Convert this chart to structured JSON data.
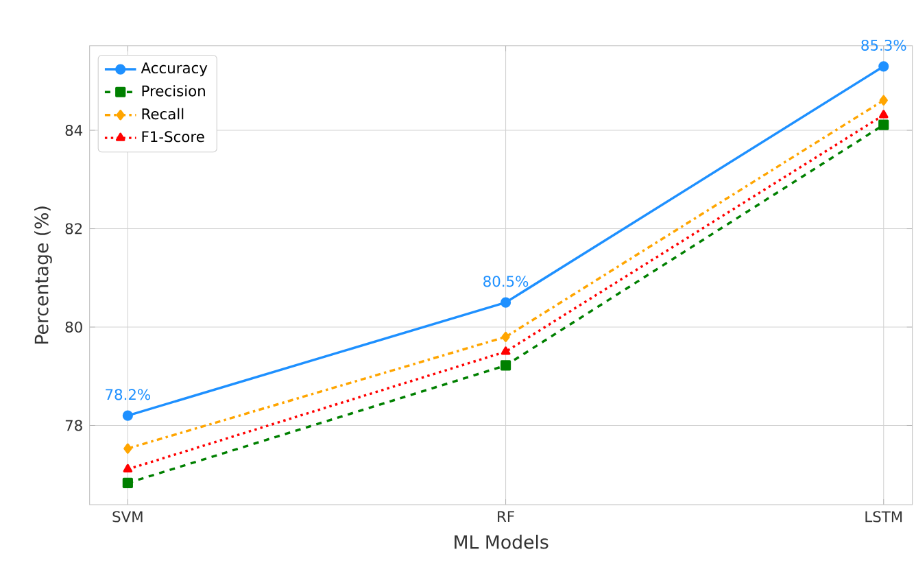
{
  "chart_data": {
    "type": "line",
    "xlabel": "ML Models",
    "ylabel": "Percentage (%)",
    "categories": [
      "SVM",
      "RF",
      "LSTM"
    ],
    "series": [
      {
        "name": "Accuracy",
        "color": "#1e90ff",
        "values": [
          78.2,
          80.5,
          85.3
        ],
        "marker": "circle",
        "line_style": "solid",
        "value_labels": [
          "78.2%",
          "80.5%",
          "85.3%"
        ]
      },
      {
        "name": "Precision",
        "color": "#008000",
        "values": [
          76.83,
          79.22,
          84.11
        ],
        "marker": "square",
        "line_style": "dashed"
      },
      {
        "name": "Recall",
        "color": "#ffa500",
        "values": [
          77.53,
          79.8,
          84.61
        ],
        "marker": "diamond",
        "line_style": "dashdot"
      },
      {
        "name": "F1-Score",
        "color": "#ff0000",
        "values": [
          77.11,
          79.5,
          84.31
        ],
        "marker": "triangle",
        "line_style": "dotted"
      }
    ],
    "ylim": [
      76.39,
      85.72
    ],
    "yticks": [
      78,
      80,
      82,
      84
    ],
    "grid": true,
    "legend": "top left"
  }
}
